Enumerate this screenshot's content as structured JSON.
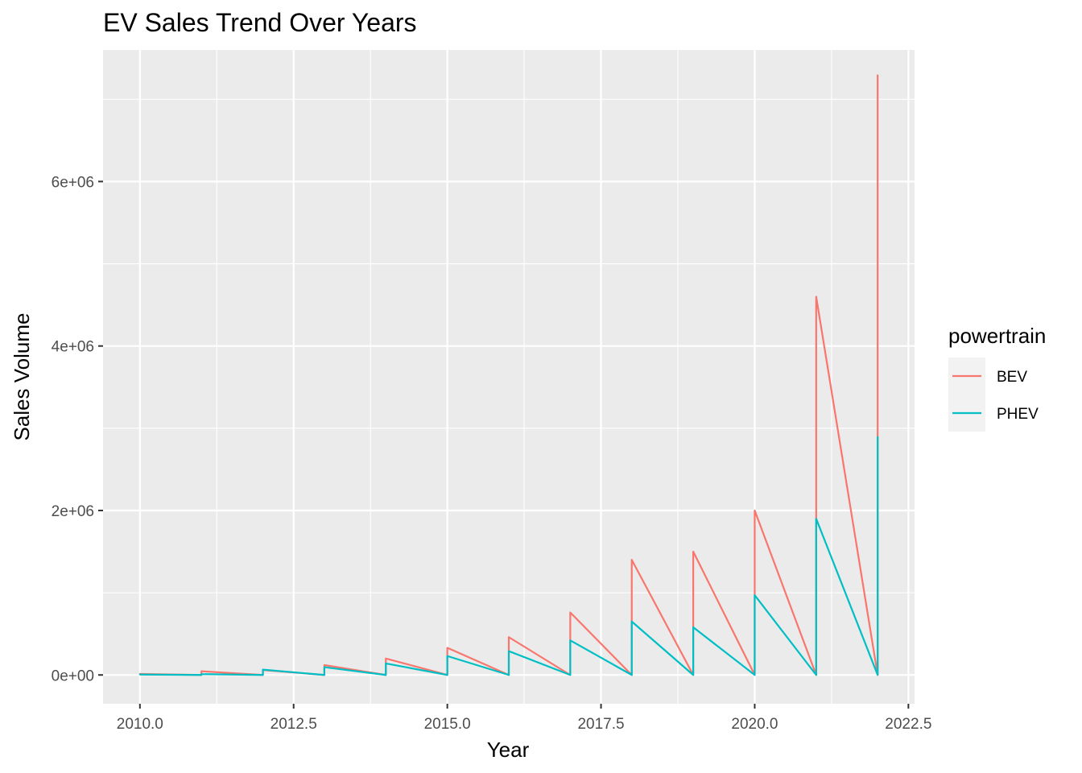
{
  "chart_data": {
    "type": "line",
    "title": "EV Sales Trend Over Years",
    "xlabel": "Year",
    "ylabel": "Sales Volume",
    "xlim": [
      2009.4,
      2022.6
    ],
    "ylim": [
      -350000,
      7600000
    ],
    "x_ticks": [
      2010.0,
      2012.5,
      2015.0,
      2017.5,
      2020.0,
      2022.5
    ],
    "x_tick_labels": [
      "2010.0",
      "2012.5",
      "2015.0",
      "2017.5",
      "2020.0",
      "2022.5"
    ],
    "y_ticks": [
      0,
      2000000,
      4000000,
      6000000
    ],
    "y_tick_labels": [
      "0e+00",
      "2e+06",
      "4e+06",
      "6e+06"
    ],
    "grid": true,
    "legend": {
      "title": "powertrain",
      "position": "right"
    },
    "series": [
      {
        "name": "BEV",
        "color": "#F8766D",
        "points": [
          [
            2010,
            0
          ],
          [
            2010,
            12000
          ],
          [
            2011,
            0
          ],
          [
            2011,
            45000
          ],
          [
            2012,
            0
          ],
          [
            2012,
            60000
          ],
          [
            2013,
            0
          ],
          [
            2013,
            120000
          ],
          [
            2014,
            0
          ],
          [
            2014,
            200000
          ],
          [
            2015,
            0
          ],
          [
            2015,
            330000
          ],
          [
            2016,
            0
          ],
          [
            2016,
            460000
          ],
          [
            2017,
            0
          ],
          [
            2017,
            760000
          ],
          [
            2018,
            0
          ],
          [
            2018,
            1400000
          ],
          [
            2019,
            0
          ],
          [
            2019,
            1500000
          ],
          [
            2020,
            0
          ],
          [
            2020,
            2000000
          ],
          [
            2021,
            0
          ],
          [
            2021,
            4600000
          ],
          [
            2022,
            0
          ],
          [
            2022,
            7300000
          ]
        ]
      },
      {
        "name": "PHEV",
        "color": "#00BFC4",
        "points": [
          [
            2010,
            0
          ],
          [
            2010,
            5000
          ],
          [
            2011,
            0
          ],
          [
            2011,
            10000
          ],
          [
            2012,
            0
          ],
          [
            2012,
            65000
          ],
          [
            2013,
            0
          ],
          [
            2013,
            95000
          ],
          [
            2014,
            0
          ],
          [
            2014,
            140000
          ],
          [
            2015,
            0
          ],
          [
            2015,
            230000
          ],
          [
            2016,
            0
          ],
          [
            2016,
            290000
          ],
          [
            2017,
            0
          ],
          [
            2017,
            420000
          ],
          [
            2018,
            0
          ],
          [
            2018,
            650000
          ],
          [
            2019,
            0
          ],
          [
            2019,
            580000
          ],
          [
            2020,
            0
          ],
          [
            2020,
            970000
          ],
          [
            2021,
            0
          ],
          [
            2021,
            1900000
          ],
          [
            2022,
            0
          ],
          [
            2022,
            2900000
          ]
        ]
      }
    ]
  }
}
